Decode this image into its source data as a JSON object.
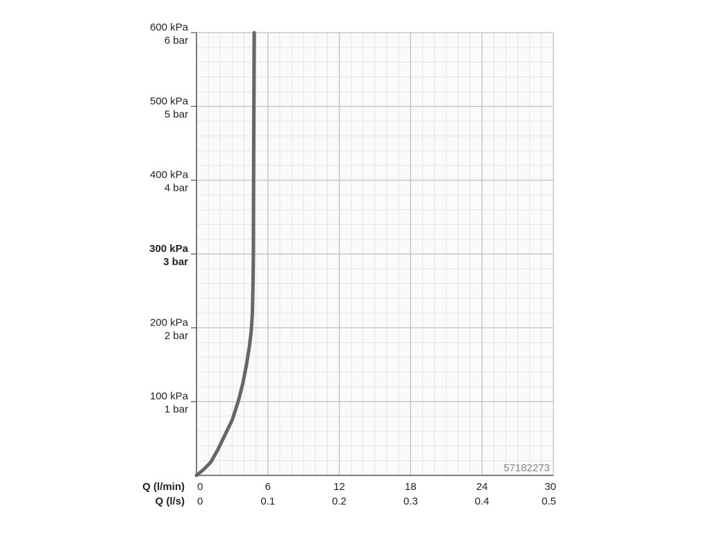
{
  "chart_data": {
    "type": "line",
    "title": "",
    "x_axis_primary": {
      "label": "Q (l/min)",
      "ticks": [
        "0",
        "6",
        "12",
        "18",
        "24",
        "30"
      ],
      "range": [
        0,
        30
      ],
      "minor_step": 1
    },
    "x_axis_secondary": {
      "label": "Q (l/s)",
      "ticks": [
        "0",
        "0.1",
        "0.2",
        "0.3",
        "0.4",
        "0.5"
      ]
    },
    "y_axis": {
      "range": [
        0,
        600
      ],
      "unit": "kPa",
      "minor_step": 20,
      "ticks": [
        {
          "value": 100,
          "kpa": "100 kPa",
          "bar": "1 bar",
          "emphasis": false
        },
        {
          "value": 200,
          "kpa": "200 kPa",
          "bar": "2 bar",
          "emphasis": false
        },
        {
          "value": 300,
          "kpa": "300 kPa",
          "bar": "3 bar",
          "emphasis": true
        },
        {
          "value": 400,
          "kpa": "400 kPa",
          "bar": "4 bar",
          "emphasis": false
        },
        {
          "value": 500,
          "kpa": "500 kPa",
          "bar": "5 bar",
          "emphasis": false
        },
        {
          "value": 600,
          "kpa": "600 kPa",
          "bar": "6 bar",
          "emphasis": false
        }
      ]
    },
    "grid": true,
    "series": [
      {
        "color": "#666666",
        "points": [
          [
            0,
            0
          ],
          [
            0.6,
            8
          ],
          [
            1.2,
            18
          ],
          [
            1.8,
            35
          ],
          [
            2.4,
            55
          ],
          [
            3.0,
            75
          ],
          [
            3.5,
            100
          ],
          [
            3.9,
            125
          ],
          [
            4.2,
            150
          ],
          [
            4.45,
            175
          ],
          [
            4.6,
            195
          ],
          [
            4.7,
            220
          ],
          [
            4.75,
            260
          ],
          [
            4.78,
            300
          ],
          [
            4.8,
            400
          ],
          [
            4.82,
            500
          ],
          [
            4.85,
            600
          ]
        ]
      }
    ],
    "annotation": "57182273"
  },
  "colors": {
    "grid_major": "#bdbdbd",
    "grid_minor": "#e4e4e4",
    "axis": "#555555",
    "curve": "#666666"
  }
}
